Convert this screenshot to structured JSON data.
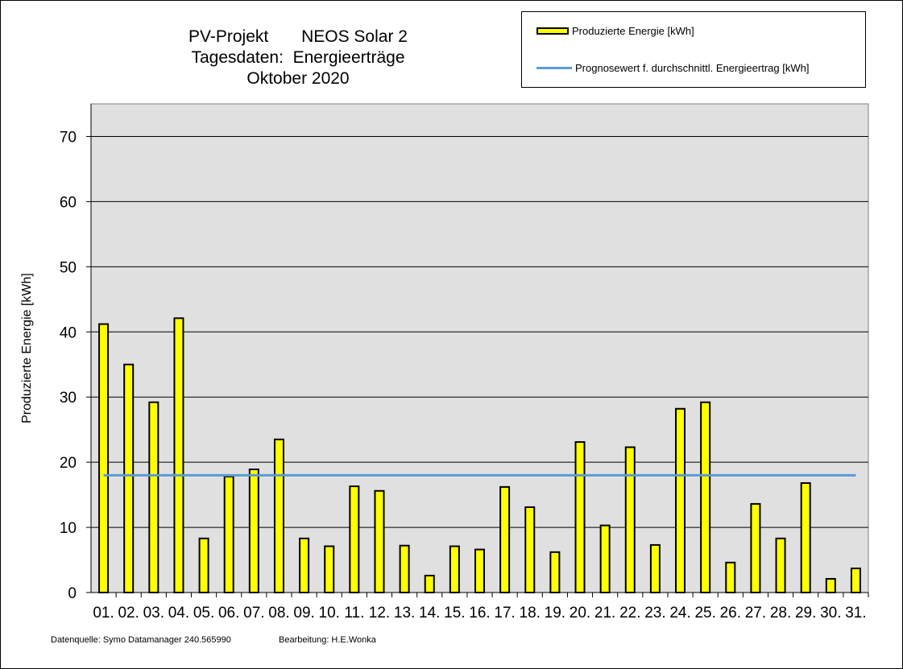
{
  "title_lines": [
    "PV-Projekt       NEOS Solar 2",
    "Tagesdaten:  Energieerträge",
    "Oktober 2020"
  ],
  "legend": {
    "bar_label": "Produzierte Energie [kWh]",
    "line_label": "Prognosewert f. durchschnittl. Energieertrag  [kWh]"
  },
  "footer": {
    "source": "Datenquelle: Symo Datamanager 240.565990",
    "editor": "Bearbeitung: H.E.Wonka"
  },
  "colors": {
    "bar": "#ffff00",
    "bar_border": "#000000",
    "plot_bg": "#e0e0e0",
    "line": "#5b9bd5"
  },
  "chart_data": {
    "type": "bar",
    "ylabel": "Produzierte Energie [kWh]",
    "xlabel": "",
    "ylim": [
      0,
      75
    ],
    "yticks": [
      0,
      10,
      20,
      30,
      40,
      50,
      60,
      70
    ],
    "grid": true,
    "legend_position": "top-right",
    "categories": [
      "01.",
      "02.",
      "03.",
      "04.",
      "05.",
      "06.",
      "07.",
      "08.",
      "09.",
      "10.",
      "11.",
      "12.",
      "13.",
      "14.",
      "15.",
      "16.",
      "17.",
      "18.",
      "19.",
      "20.",
      "21.",
      "22.",
      "23.",
      "24.",
      "25.",
      "26.",
      "27.",
      "28.",
      "29.",
      "30.",
      "31."
    ],
    "series": [
      {
        "name": "Produzierte Energie [kWh]",
        "type": "bar",
        "values": [
          41.2,
          35.0,
          29.2,
          42.1,
          8.3,
          17.8,
          18.9,
          23.5,
          8.3,
          7.1,
          16.3,
          15.6,
          7.2,
          2.6,
          7.1,
          6.6,
          16.2,
          13.1,
          6.2,
          23.1,
          10.3,
          22.3,
          7.3,
          28.2,
          29.2,
          4.6,
          13.6,
          8.3,
          16.8,
          2.1,
          3.7
        ]
      },
      {
        "name": "Prognosewert f. durchschnittl. Energieertrag  [kWh]",
        "type": "line",
        "value": 18.0
      }
    ]
  }
}
